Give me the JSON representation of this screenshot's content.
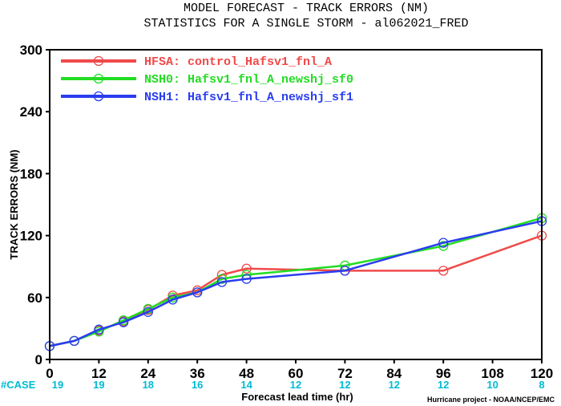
{
  "chart_data": {
    "type": "line",
    "title_line1": "MODEL FORECAST - TRACK ERRORS (NM)",
    "title_line2": "STATISTICS FOR A SINGLE STORM - al062021_FRED",
    "xlabel": "Forecast lead time (hr)",
    "ylabel": "TRACK ERRORS (NM)",
    "x_ticks": [
      "0",
      "12",
      "24",
      "36",
      "48",
      "60",
      "72",
      "84",
      "96",
      "108",
      "120"
    ],
    "y_ticks": [
      "0",
      "60",
      "120",
      "180",
      "240",
      "300"
    ],
    "y_tick_values": [
      0,
      60,
      120,
      180,
      240,
      300
    ],
    "xlim": [
      0,
      120
    ],
    "ylim": [
      0,
      300
    ],
    "case_label": "#CASE",
    "case_x": [
      0,
      12,
      24,
      36,
      48,
      60,
      72,
      84,
      96,
      108,
      120
    ],
    "case_counts": [
      "19",
      "19",
      "18",
      "16",
      "14",
      "12",
      "12",
      "12",
      "12",
      "10",
      "8"
    ],
    "case_color": "#00bcd4",
    "credit": "Hurricane project - NOAA/NCEP/EMC",
    "series": [
      {
        "name": "HFSA: control_Hafsv1_fnl_A",
        "color": "#f04a4a",
        "x": [
          0,
          6,
          12,
          18,
          24,
          30,
          36,
          42,
          48,
          72,
          96,
          120
        ],
        "values": [
          13,
          18,
          28,
          37,
          48,
          62,
          67,
          82,
          88,
          86,
          86,
          120
        ]
      },
      {
        "name": "NSH0: Hafsv1_fnl_A_newshj_sf0",
        "color": "#22dd22",
        "x": [
          0,
          6,
          12,
          18,
          24,
          30,
          36,
          42,
          48,
          72,
          96,
          120
        ],
        "values": [
          13,
          18,
          27,
          38,
          49,
          60,
          65,
          78,
          82,
          91,
          110,
          137
        ]
      },
      {
        "name": "NSH1: Hafsv1_fnl_A_newshj_sf1",
        "color": "#2a3df0",
        "x": [
          0,
          6,
          12,
          18,
          24,
          30,
          36,
          42,
          48,
          72,
          96,
          120
        ],
        "values": [
          13,
          18,
          29,
          36,
          46,
          58,
          65,
          75,
          78,
          86,
          113,
          134
        ]
      }
    ]
  }
}
